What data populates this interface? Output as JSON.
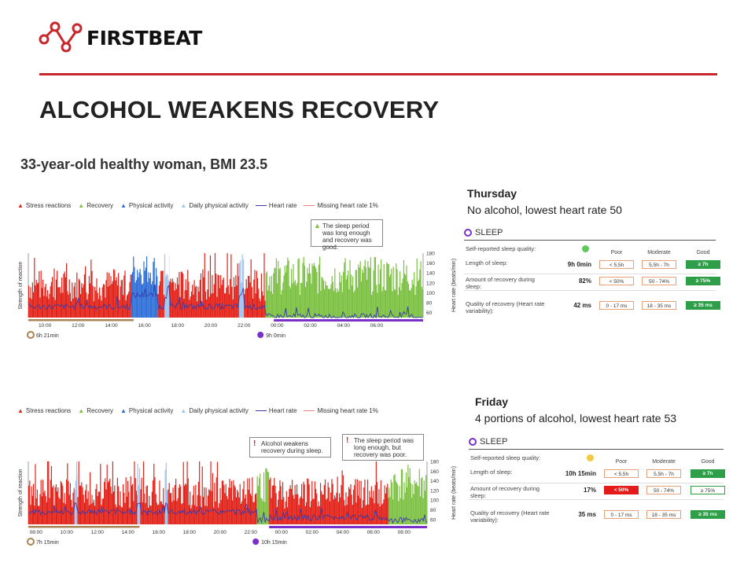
{
  "brand": {
    "name": "FIRSTBEAT"
  },
  "title": "ALCOHOL WEAKENS RECOVERY",
  "subtitle": "33-year-old healthy woman, BMI 23.5",
  "legend": [
    "Stress reactions",
    "Recovery",
    "Physical activity",
    "Daily physical activity",
    "Heart rate",
    "Missing heart rate 1%"
  ],
  "colors": {
    "stress": "#e2231a",
    "recovery": "#7cc142",
    "physical": "#2f6fd8",
    "daily_physical": "#9fc3ee",
    "heart_rate": "#3a3aa8",
    "missing_hr": "#f08080",
    "accent_red": "#c8262d",
    "sleep_purple": "#7b2fc9",
    "day_brown": "#a88454",
    "good": "#2e9e48"
  },
  "thursday": {
    "day": "Thursday",
    "description": "No alcohol, lowest heart rate 50",
    "note": "The sleep period was long enough and recovery was good.",
    "day_duration": "6h 21min",
    "sleep_duration": "9h 0min",
    "sleep_card": {
      "title": "SLEEP",
      "col_poor": "Poor",
      "col_moderate": "Moderate",
      "col_good": "Good",
      "self_reported_label": "Self-reported sleep quality:",
      "self_reported_icon": "smiley-good-icon",
      "rows": [
        {
          "label": "Length of sleep:",
          "value": "9h 0min",
          "poor": "< 5,5h",
          "moderate": "5,5h - 7h",
          "good": "≥ 7h",
          "result": "good"
        },
        {
          "label": "Amount of recovery during sleep:",
          "value": "82%",
          "poor": "< 50%",
          "moderate": "50 - 74%",
          "good": "≥ 75%",
          "result": "good"
        },
        {
          "label": "Quality of recovery (Heart rate variability):",
          "value": "42 ms",
          "poor": "0 - 17 ms",
          "moderate": "18 - 35 ms",
          "good": "≥ 35 ms",
          "result": "good"
        }
      ]
    }
  },
  "friday": {
    "day": "Friday",
    "description": "4 portions of alcohol, lowest heart rate 53",
    "note_alcohol": "Alcohol weakens recovery during sleep.",
    "note_sleep": "The sleep period was long enough, but recovery was poor.",
    "day_duration": "7h 15min",
    "sleep_duration": "10h 15min",
    "sleep_card": {
      "title": "SLEEP",
      "col_poor": "Poor",
      "col_moderate": "Moderate",
      "col_good": "Good",
      "self_reported_label": "Self-reported sleep quality:",
      "self_reported_icon": "smiley-neutral-icon",
      "rows": [
        {
          "label": "Length of sleep:",
          "value": "10h 15min",
          "poor": "< 5,5h",
          "moderate": "5,5h - 7h",
          "good": "≥ 7h",
          "result": "good"
        },
        {
          "label": "Amount of recovery during sleep:",
          "value": "17%",
          "poor": "< 50%",
          "moderate": "50 - 74%",
          "good": "≥ 75%",
          "result": "poor"
        },
        {
          "label": "Quality of recovery (Heart rate variability):",
          "value": "35 ms",
          "poor": "0 - 17 ms",
          "moderate": "18 - 35 ms",
          "good": "≥ 35 ms",
          "result": "good"
        }
      ]
    }
  },
  "chart_data": [
    {
      "type": "bar",
      "ylabel": "Strength of reaction",
      "y2label": "Heart rate (beats/min)",
      "y2_ticks": [
        60,
        80,
        100,
        120,
        140,
        160,
        180
      ],
      "y2lim": [
        50,
        180
      ],
      "x_ticks": [
        "10:00",
        "12:00",
        "14:00",
        "16:00",
        "18:00",
        "20:00",
        "22:00",
        "00:00",
        "02:00",
        "04:00",
        "06:00"
      ],
      "x_range_hours": [
        9.0,
        32.8
      ],
      "segments": [
        {
          "state": "stress",
          "from": 9.0,
          "to": 15.2
        },
        {
          "state": "physical",
          "from": 15.2,
          "to": 16.8
        },
        {
          "state": "stress",
          "from": 16.8,
          "to": 17.2
        },
        {
          "state": "daily_physical",
          "from": 17.2,
          "to": 17.5
        },
        {
          "state": "stress",
          "from": 17.5,
          "to": 21.7
        },
        {
          "state": "daily_physical",
          "from": 21.7,
          "to": 22.0
        },
        {
          "state": "stress",
          "from": 22.0,
          "to": 23.3
        },
        {
          "state": "recovery",
          "from": 23.3,
          "to": 32.8
        }
      ],
      "day_bar_hours": [
        9.0,
        15.35
      ],
      "sleep_bar_hours": [
        23.8,
        32.8
      ],
      "heart_rate_profile": {
        "day": 72,
        "activity": 95,
        "sleep": 52,
        "lowest": 50
      }
    },
    {
      "type": "bar",
      "ylabel": "Strength of reaction",
      "y2label": "Heart rate (beats/min)",
      "y2_ticks": [
        60,
        80,
        100,
        120,
        140,
        160,
        180
      ],
      "y2lim": [
        50,
        180
      ],
      "x_ticks": [
        "08:00",
        "10:00",
        "12:00",
        "14:00",
        "16:00",
        "18:00",
        "20:00",
        "22:00",
        "00:00",
        "02:00",
        "04:00",
        "06:00",
        "08:00"
      ],
      "x_range_hours": [
        7.5,
        33.5
      ],
      "segments": [
        {
          "state": "stress",
          "from": 7.5,
          "to": 10.5
        },
        {
          "state": "daily_physical",
          "from": 10.5,
          "to": 10.7
        },
        {
          "state": "stress",
          "from": 10.7,
          "to": 14.6
        },
        {
          "state": "daily_physical",
          "from": 14.6,
          "to": 14.8
        },
        {
          "state": "stress",
          "from": 14.8,
          "to": 16.4
        },
        {
          "state": "daily_physical",
          "from": 16.4,
          "to": 16.6
        },
        {
          "state": "stress",
          "from": 16.6,
          "to": 22.4
        },
        {
          "state": "recovery",
          "from": 22.4,
          "to": 23.2
        },
        {
          "state": "stress",
          "from": 23.2,
          "to": 31.0
        },
        {
          "state": "recovery",
          "from": 31.0,
          "to": 33.5
        }
      ],
      "day_bar_hours": [
        7.5,
        14.75
      ],
      "sleep_bar_hours": [
        23.2,
        33.5
      ],
      "heart_rate_profile": {
        "day": 75,
        "activity": 90,
        "sleep": 58,
        "lowest": 53
      }
    }
  ]
}
